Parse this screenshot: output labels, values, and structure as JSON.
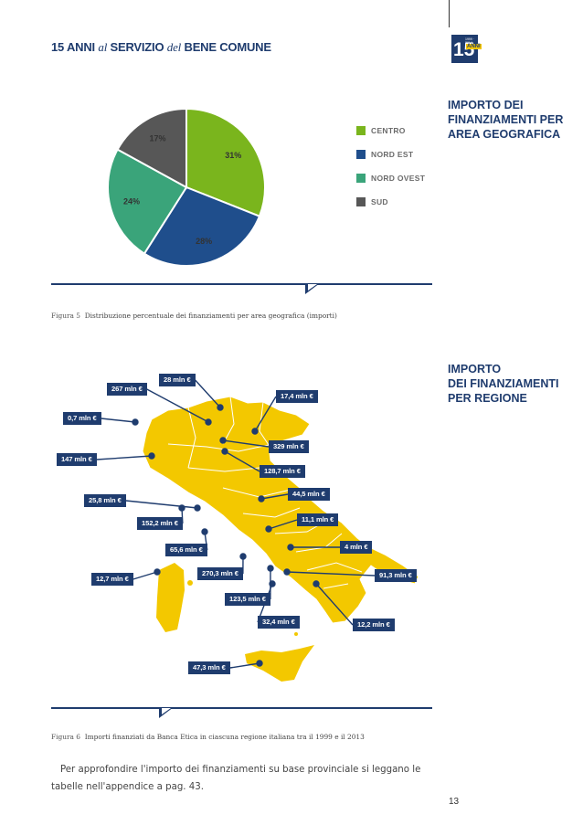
{
  "header": {
    "title_part1": "15 ANNI",
    "title_al": "al",
    "title_part2": "SERVIZIO",
    "title_del": "del",
    "title_part3": "BENE COMUNE",
    "logo_number": "15",
    "logo_years": "1999 · 2014",
    "logo_anni": "ANNI"
  },
  "section1": {
    "heading_lines": [
      "IMPORTO DEI",
      "FINANZIAMENTI PER",
      "AREA GEOGRAFICA"
    ],
    "caption_figure": "Figura 5",
    "caption_text": "Distribuzione percentuale dei finanziamenti per area geografica (importi)"
  },
  "chart_data": {
    "type": "pie",
    "title": "",
    "categories": [
      "CENTRO",
      "NORD EST",
      "NORD OVEST",
      "SUD"
    ],
    "values": [
      31,
      28,
      24,
      17
    ],
    "labels": [
      "31%",
      "28%",
      "24%",
      "17%"
    ],
    "colors": [
      "#7ab51d",
      "#1f4e8c",
      "#3aa47a",
      "#575757"
    ],
    "legend_position": "right"
  },
  "section2": {
    "heading_lines": [
      "IMPORTO",
      "DEI FINANZIAMENTI",
      "PER REGIONE"
    ],
    "caption_figure": "Figura 6",
    "caption_text": "Importi finanziati da Banca Etica in ciascuna regione italiana tra il 1999 e il 2013",
    "map_color": "#f3c800",
    "labels": [
      {
        "text": "28 mln €"
      },
      {
        "text": "267 mln €"
      },
      {
        "text": "17,4 mln €"
      },
      {
        "text": "0,7 mln €"
      },
      {
        "text": "329 mln €"
      },
      {
        "text": "147 mln €"
      },
      {
        "text": "128,7 mln €"
      },
      {
        "text": "44,5 mln €"
      },
      {
        "text": "25,8 mln €"
      },
      {
        "text": "11,1 mln €"
      },
      {
        "text": "152,2 mln €"
      },
      {
        "text": "4 mln €"
      },
      {
        "text": "65,6 mln €"
      },
      {
        "text": "270,3 mln €"
      },
      {
        "text": "91,3 mln €"
      },
      {
        "text": "12,7 mln €"
      },
      {
        "text": "123,5 mln €"
      },
      {
        "text": "32,4 mln €"
      },
      {
        "text": "12,2 mln €"
      },
      {
        "text": "47,3 mln €"
      }
    ]
  },
  "body": {
    "paragraph": "Per approfondire l'importo dei finanziamenti su base provinciale si leggano le tabelle nell'appendice a pag. 43.",
    "page_number": "13"
  }
}
